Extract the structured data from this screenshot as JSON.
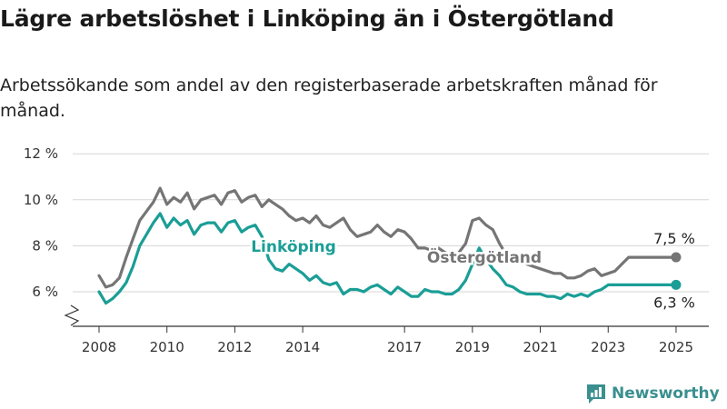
{
  "title": "Lägre arbetslöshet i Linköping än i Östergötland",
  "subtitle": "Arbetssökande som andel av den registerbaserade arbetskraften månad för månad.",
  "brand": "Newsworthy",
  "colors": {
    "linkoping": "#1a9e96",
    "ostergotland": "#757575",
    "grid": "#d6d6d6",
    "brand": "#3a8f8f"
  },
  "chart_data": {
    "type": "line",
    "y_ticks": [
      {
        "value": 6,
        "label": "6 %"
      },
      {
        "value": 8,
        "label": "8 %"
      },
      {
        "value": 10,
        "label": "10 %"
      },
      {
        "value": 12,
        "label": "12 %"
      }
    ],
    "x_ticks": [
      {
        "value": 2008,
        "label": "2008"
      },
      {
        "value": 2010,
        "label": "2010"
      },
      {
        "value": 2012,
        "label": "2012"
      },
      {
        "value": 2014,
        "label": "2014"
      },
      {
        "value": 2017,
        "label": "2017"
      },
      {
        "value": 2019,
        "label": "2019"
      },
      {
        "value": 2021,
        "label": "2021"
      },
      {
        "value": 2023,
        "label": "2023"
      },
      {
        "value": 2025,
        "label": "2025"
      }
    ],
    "ylim": [
      5,
      12
    ],
    "xlim": [
      2007.6,
      2025.5
    ],
    "axis_break": true,
    "grid": true,
    "series": [
      {
        "name": "Östergötland",
        "end_label": "7,5 %",
        "x": [
          2008.0,
          2008.2,
          2008.4,
          2008.6,
          2008.8,
          2009.0,
          2009.2,
          2009.4,
          2009.6,
          2009.8,
          2010.0,
          2010.2,
          2010.4,
          2010.6,
          2010.8,
          2011.0,
          2011.2,
          2011.4,
          2011.6,
          2011.8,
          2012.0,
          2012.2,
          2012.4,
          2012.6,
          2012.8,
          2013.0,
          2013.2,
          2013.4,
          2013.6,
          2013.8,
          2014.0,
          2014.2,
          2014.4,
          2014.6,
          2014.8,
          2015.0,
          2015.2,
          2015.4,
          2015.6,
          2015.8,
          2016.0,
          2016.2,
          2016.4,
          2016.6,
          2016.8,
          2017.0,
          2017.2,
          2017.4,
          2017.6,
          2017.8,
          2018.0,
          2018.2,
          2018.4,
          2018.6,
          2018.8,
          2019.0,
          2019.2,
          2019.4,
          2019.6,
          2019.8,
          2020.0,
          2020.2,
          2020.4,
          2020.6,
          2020.8,
          2021.0,
          2021.2,
          2021.4,
          2021.6,
          2021.8,
          2022.0,
          2022.2,
          2022.4,
          2022.6,
          2022.8,
          2023.0,
          2023.2,
          2023.4,
          2023.6,
          2023.8,
          2024.0,
          2024.2,
          2024.4,
          2024.6,
          2024.8,
          2025.0
        ],
        "y": [
          6.7,
          6.2,
          6.3,
          6.6,
          7.5,
          8.3,
          9.1,
          9.5,
          9.9,
          10.5,
          9.8,
          10.1,
          9.9,
          10.3,
          9.6,
          10.0,
          10.1,
          10.2,
          9.8,
          10.3,
          10.4,
          9.9,
          10.1,
          10.2,
          9.7,
          10.0,
          9.8,
          9.6,
          9.3,
          9.1,
          9.2,
          9.0,
          9.3,
          8.9,
          8.8,
          9.0,
          9.2,
          8.7,
          8.4,
          8.5,
          8.6,
          8.9,
          8.6,
          8.4,
          8.7,
          8.6,
          8.3,
          7.9,
          7.9,
          7.8,
          7.9,
          7.7,
          7.6,
          7.7,
          8.1,
          9.1,
          9.2,
          8.9,
          8.7,
          8.1,
          7.6,
          7.5,
          7.4,
          7.2,
          7.1,
          7.0,
          6.9,
          6.8,
          6.8,
          6.6,
          6.6,
          6.7,
          6.9,
          7.0,
          6.7,
          6.8,
          6.9,
          7.2,
          7.5,
          7.5,
          7.5,
          7.5,
          7.5,
          7.5,
          7.5,
          7.5
        ]
      },
      {
        "name": "Linköping",
        "end_label": "6,3 %",
        "x": [
          2008.0,
          2008.2,
          2008.4,
          2008.6,
          2008.8,
          2009.0,
          2009.2,
          2009.4,
          2009.6,
          2009.8,
          2010.0,
          2010.2,
          2010.4,
          2010.6,
          2010.8,
          2011.0,
          2011.2,
          2011.4,
          2011.6,
          2011.8,
          2012.0,
          2012.2,
          2012.4,
          2012.6,
          2012.8,
          2013.0,
          2013.2,
          2013.4,
          2013.6,
          2013.8,
          2014.0,
          2014.2,
          2014.4,
          2014.6,
          2014.8,
          2015.0,
          2015.2,
          2015.4,
          2015.6,
          2015.8,
          2016.0,
          2016.2,
          2016.4,
          2016.6,
          2016.8,
          2017.0,
          2017.2,
          2017.4,
          2017.6,
          2017.8,
          2018.0,
          2018.2,
          2018.4,
          2018.6,
          2018.8,
          2019.0,
          2019.2,
          2019.4,
          2019.6,
          2019.8,
          2020.0,
          2020.2,
          2020.4,
          2020.6,
          2020.8,
          2021.0,
          2021.2,
          2021.4,
          2021.6,
          2021.8,
          2022.0,
          2022.2,
          2022.4,
          2022.6,
          2022.8,
          2023.0,
          2023.2,
          2023.4,
          2023.6,
          2023.8,
          2024.0,
          2024.2,
          2024.4,
          2024.6,
          2024.8,
          2025.0
        ],
        "y": [
          6.0,
          5.5,
          5.7,
          6.0,
          6.4,
          7.1,
          8.0,
          8.5,
          9.0,
          9.4,
          8.8,
          9.2,
          8.9,
          9.1,
          8.5,
          8.9,
          9.0,
          9.0,
          8.6,
          9.0,
          9.1,
          8.6,
          8.8,
          8.9,
          8.4,
          7.4,
          7.0,
          6.9,
          7.2,
          7.0,
          6.8,
          6.5,
          6.7,
          6.4,
          6.3,
          6.4,
          5.9,
          6.1,
          6.1,
          6.0,
          6.2,
          6.3,
          6.1,
          5.9,
          6.2,
          6.0,
          5.8,
          5.8,
          6.1,
          6.0,
          6.0,
          5.9,
          5.9,
          6.1,
          6.5,
          7.2,
          7.9,
          7.4,
          7.0,
          6.7,
          6.3,
          6.2,
          6.0,
          5.9,
          5.9,
          5.9,
          5.8,
          5.8,
          5.7,
          5.9,
          5.8,
          5.9,
          5.8,
          6.0,
          6.1,
          6.3,
          6.3,
          6.3,
          6.3,
          6.3,
          6.3,
          6.3,
          6.3,
          6.3,
          6.3,
          6.3
        ]
      }
    ],
    "series_labels": [
      "Linköping",
      "Östergötland"
    ]
  }
}
